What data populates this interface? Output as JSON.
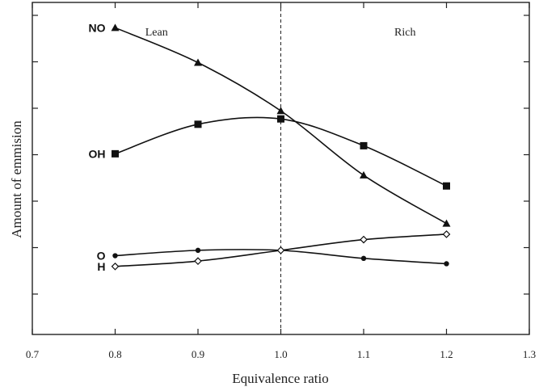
{
  "chart_data": {
    "type": "line",
    "title": "",
    "xlabel": "Equivalence ratio",
    "ylabel": "Amount of emmision",
    "xlim": [
      0.7,
      1.3
    ],
    "x_ticks": [
      "0.7",
      "0.8",
      "0.9",
      "1.0",
      "1.1",
      "1.2",
      "1.3"
    ],
    "x": [
      0.8,
      0.9,
      1.0,
      1.1,
      1.2
    ],
    "ylim": [
      0,
      1
    ],
    "y_tick_count": 8,
    "y_ticks_labeled": false,
    "grid": false,
    "divider": {
      "x": 1.0,
      "style": "dashed"
    },
    "regions": [
      {
        "label": "Lean",
        "x": 0.85
      },
      {
        "label": "Rich",
        "x": 1.15
      }
    ],
    "series": [
      {
        "name": "NO",
        "marker": "triangle",
        "values": [
          0.99,
          0.86,
          0.68,
          0.44,
          0.26
        ]
      },
      {
        "name": "OH",
        "marker": "square",
        "values": [
          0.52,
          0.63,
          0.65,
          0.55,
          0.4
        ]
      },
      {
        "name": "O",
        "marker": "dot",
        "values": [
          0.14,
          0.16,
          0.16,
          0.13,
          0.11
        ]
      },
      {
        "name": "H",
        "marker": "diamond",
        "values": [
          0.1,
          0.12,
          0.16,
          0.2,
          0.22
        ]
      }
    ]
  }
}
